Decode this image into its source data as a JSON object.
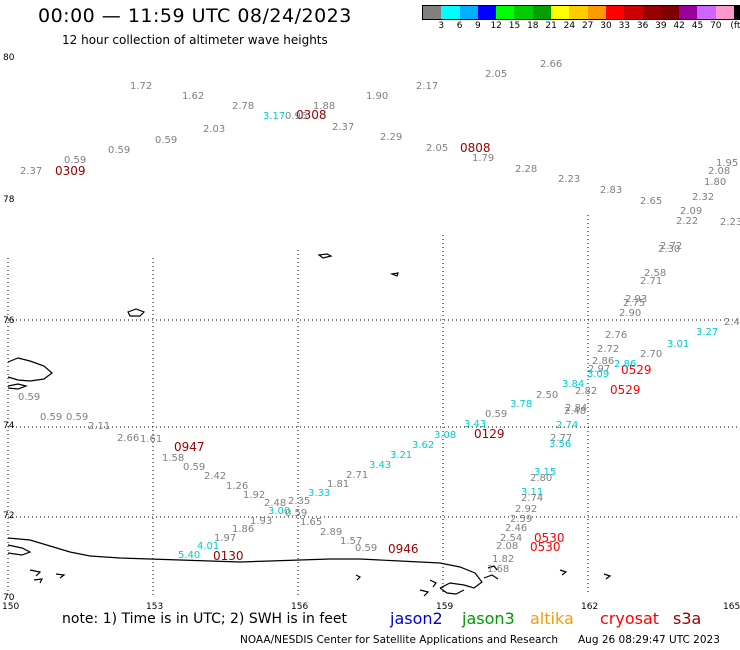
{
  "title": "00:00 — 11:59 UTC 08/24/2023",
  "subtitle": "12 hour collection of altimeter wave heights",
  "legend": {
    "colors": [
      "#808080",
      "#00ffff",
      "#00b0ff",
      "#0000ff",
      "#00ff00",
      "#00cc00",
      "#00a000",
      "#ffff00",
      "#ffcc00",
      "#ff9900",
      "#ff0000",
      "#cc0000",
      "#990000",
      "#800000",
      "#990099",
      "#cc66ff",
      "#ff99cc",
      "#000000"
    ],
    "labels": [
      "3",
      "6",
      "9",
      "12",
      "15",
      "18",
      "21",
      "24",
      "27",
      "30",
      "33",
      "36",
      "39",
      "42",
      "45",
      "70"
    ],
    "unit": "(ft)"
  },
  "lat_labels": [
    "80",
    "78",
    "76",
    "74",
    "72",
    "70"
  ],
  "lon_labels": [
    "150",
    "153",
    "156",
    "159",
    "162",
    "165"
  ],
  "note": "note:  1) Time is in UTC;  2) SWH is in feet",
  "satellites": [
    {
      "name": "jason2",
      "color": "#0000cc"
    },
    {
      "name": "jason3",
      "color": "#009900"
    },
    {
      "name": "altika",
      "color": "#ff9900"
    },
    {
      "name": "cryosat",
      "color": "#ff0000"
    },
    {
      "name": "s3a",
      "color": "#990000"
    }
  ],
  "footer": "NOAA/NESDIS Center for Satellite Applications and Research",
  "credit": "Aug 26 08:29:47 UTC 2023",
  "time_labels": [
    {
      "text": "0309",
      "color": "#990000"
    },
    {
      "text": "0308",
      "color": "#990000"
    },
    {
      "text": "0808",
      "color": "#990000"
    },
    {
      "text": "0947",
      "color": "#990000"
    },
    {
      "text": "0129",
      "color": "#990000"
    },
    {
      "text": "0529",
      "color": "#ff0000"
    },
    {
      "text": "0529",
      "color": "#ff0000"
    },
    {
      "text": "0130",
      "color": "#990000"
    },
    {
      "text": "0946",
      "color": "#990000"
    },
    {
      "text": "0530",
      "color": "#ff0000"
    },
    {
      "text": "0530",
      "color": "#ff0000"
    }
  ],
  "wave_labels": [
    {
      "text": "2.66",
      "color": "#808080"
    },
    {
      "text": "2.05",
      "color": "#808080"
    },
    {
      "text": "1.72",
      "color": "#808080"
    },
    {
      "text": "1.62",
      "color": "#808080"
    },
    {
      "text": "2.78",
      "color": "#808080"
    },
    {
      "text": "3.17",
      "color": "#00cccc"
    },
    {
      "text": "0.96",
      "color": "#808080"
    },
    {
      "text": "1.88",
      "color": "#808080"
    },
    {
      "text": "2.37",
      "color": "#808080"
    },
    {
      "text": "1.90",
      "color": "#808080"
    },
    {
      "text": "2.17",
      "color": "#808080"
    },
    {
      "text": "2.03",
      "color": "#808080"
    },
    {
      "text": "0.59",
      "color": "#808080"
    },
    {
      "text": "0.59",
      "color": "#808080"
    },
    {
      "text": "0.59",
      "color": "#808080"
    },
    {
      "text": "2.37",
      "color": "#808080"
    },
    {
      "text": "2.29",
      "color": "#808080"
    },
    {
      "text": "2.05",
      "color": "#808080"
    },
    {
      "text": "1.79",
      "color": "#808080"
    },
    {
      "text": "2.28",
      "color": "#808080"
    },
    {
      "text": "2.23",
      "color": "#808080"
    },
    {
      "text": "2.83",
      "color": "#808080"
    },
    {
      "text": "2.65",
      "color": "#808080"
    },
    {
      "text": "1.95",
      "color": "#808080"
    },
    {
      "text": "2.08",
      "color": "#808080"
    },
    {
      "text": "1.80",
      "color": "#808080"
    },
    {
      "text": "2.32",
      "color": "#808080"
    },
    {
      "text": "2.09",
      "color": "#808080"
    },
    {
      "text": "2.22",
      "color": "#808080"
    },
    {
      "text": "2.23",
      "color": "#808080"
    },
    {
      "text": "2.72",
      "color": "#808080"
    },
    {
      "text": "2.30",
      "color": "#808080"
    },
    {
      "text": "2.58",
      "color": "#808080"
    },
    {
      "text": "2.71",
      "color": "#808080"
    },
    {
      "text": "2.93",
      "color": "#808080"
    },
    {
      "text": "2.75",
      "color": "#808080"
    },
    {
      "text": "2.90",
      "color": "#808080"
    },
    {
      "text": "3.27",
      "color": "#00cccc"
    },
    {
      "text": "2.4",
      "color": "#808080"
    },
    {
      "text": "2.76",
      "color": "#808080"
    },
    {
      "text": "2.72",
      "color": "#808080"
    },
    {
      "text": "3.01",
      "color": "#00cccc"
    },
    {
      "text": "2.70",
      "color": "#808080"
    },
    {
      "text": "2.86",
      "color": "#808080"
    },
    {
      "text": "2.97",
      "color": "#808080"
    },
    {
      "text": "3.09",
      "color": "#00cccc"
    },
    {
      "text": "2.86",
      "color": "#00cccc"
    },
    {
      "text": "3.84",
      "color": "#00cccc"
    },
    {
      "text": "2.82",
      "color": "#808080"
    },
    {
      "text": "2.50",
      "color": "#808080"
    },
    {
      "text": "2.84",
      "color": "#808080"
    },
    {
      "text": "2.48",
      "color": "#808080"
    },
    {
      "text": "3.78",
      "color": "#00cccc"
    },
    {
      "text": "0.59",
      "color": "#808080"
    },
    {
      "text": "3.43",
      "color": "#00cccc"
    },
    {
      "text": "3.08",
      "color": "#00cccc"
    },
    {
      "text": "3.62",
      "color": "#00cccc"
    },
    {
      "text": "3.21",
      "color": "#00cccc"
    },
    {
      "text": "3.43",
      "color": "#00cccc"
    },
    {
      "text": "2.71",
      "color": "#808080"
    },
    {
      "text": "1.81",
      "color": "#808080"
    },
    {
      "text": "3.33",
      "color": "#00cccc"
    },
    {
      "text": "2.48",
      "color": "#808080"
    },
    {
      "text": "2.35",
      "color": "#808080"
    },
    {
      "text": "3.00",
      "color": "#00cccc"
    },
    {
      "text": "0.59",
      "color": "#808080"
    },
    {
      "text": "1.93",
      "color": "#808080"
    },
    {
      "text": "1.65",
      "color": "#808080"
    },
    {
      "text": "2.89",
      "color": "#808080"
    },
    {
      "text": "1.57",
      "color": "#808080"
    },
    {
      "text": "0.59",
      "color": "#808080"
    },
    {
      "text": "1.92",
      "color": "#808080"
    },
    {
      "text": "1.86",
      "color": "#808080"
    },
    {
      "text": "1.97",
      "color": "#808080"
    },
    {
      "text": "4.01",
      "color": "#00cccc"
    },
    {
      "text": "5.40",
      "color": "#00cccc"
    },
    {
      "text": "1.26",
      "color": "#808080"
    },
    {
      "text": "2.42",
      "color": "#808080"
    },
    {
      "text": "0.59",
      "color": "#808080"
    },
    {
      "text": "1.58",
      "color": "#808080"
    },
    {
      "text": "1.61",
      "color": "#808080"
    },
    {
      "text": "2.66",
      "color": "#808080"
    },
    {
      "text": "2.11",
      "color": "#808080"
    },
    {
      "text": "0.59",
      "color": "#808080"
    },
    {
      "text": "0.59",
      "color": "#808080"
    },
    {
      "text": "0.59",
      "color": "#808080"
    },
    {
      "text": "2.77",
      "color": "#808080"
    },
    {
      "text": "2.74",
      "color": "#00cccc"
    },
    {
      "text": "3.56",
      "color": "#00cccc"
    },
    {
      "text": "3.15",
      "color": "#00cccc"
    },
    {
      "text": "2.80",
      "color": "#808080"
    },
    {
      "text": "3.11",
      "color": "#00cccc"
    },
    {
      "text": "2.74",
      "color": "#808080"
    },
    {
      "text": "2.92",
      "color": "#808080"
    },
    {
      "text": "2.59",
      "color": "#808080"
    },
    {
      "text": "2.46",
      "color": "#808080"
    },
    {
      "text": "2.54",
      "color": "#808080"
    },
    {
      "text": "2.08",
      "color": "#808080"
    },
    {
      "text": "1.82",
      "color": "#808080"
    },
    {
      "text": "1.68",
      "color": "#808080"
    },
    {
      "text": "1.58",
      "color": "#808080"
    }
  ]
}
